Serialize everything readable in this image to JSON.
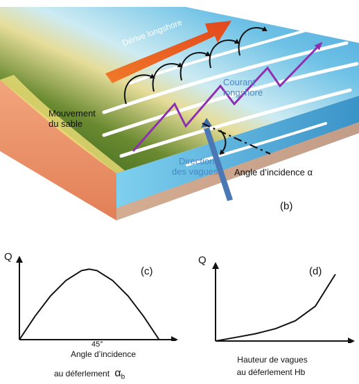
{
  "diagram": {
    "labels": {
      "derive": "Dérive longshore",
      "courant_1": "Courant",
      "courant_2": "longshore",
      "mouvement_1": "Mouvement",
      "mouvement_2": "du sable",
      "direction_1": "Direction",
      "direction_2": "des vagues",
      "angle": "Angle d’incidence α",
      "panel_b": "(b)"
    },
    "colors": {
      "land_green": "#3f6b25",
      "sand": "#f3c39a",
      "cliff": "#ec9068",
      "water_light": "#a8dcef",
      "water_deep": "#3d9bd0",
      "arrow_orange": "#e85c1e",
      "current_purple": "#8e2fb0",
      "wave_arrow": "#4a78b5"
    }
  },
  "chart_c": {
    "panel_label": "(c)",
    "y_axis_label": "Q",
    "tick_label": "45°",
    "x_axis_label_1": "Angle d’incidence",
    "x_axis_label_2": "au déferlement",
    "alpha_symbol": "α",
    "alpha_sub": "b"
  },
  "chart_d": {
    "panel_label": "(d)",
    "y_axis_label": "Q",
    "x_axis_label_1": "Hauteur de vagues",
    "x_axis_label_2": "au déferlement  Hb"
  },
  "chart_data": [
    {
      "type": "line",
      "title": "",
      "ylabel": "Q",
      "xlabel": "Angle d’incidence au déferlement αb",
      "x_ticks": [
        "45°"
      ],
      "x": [
        0,
        10,
        20,
        30,
        40,
        45,
        50,
        60,
        70,
        80,
        90
      ],
      "y": [
        0,
        0.33,
        0.62,
        0.84,
        0.98,
        1.0,
        0.98,
        0.84,
        0.62,
        0.33,
        0
      ],
      "xlim": [
        0,
        100
      ],
      "ylim": [
        0,
        1.2
      ],
      "grid": false
    },
    {
      "type": "line",
      "title": "",
      "ylabel": "Q",
      "xlabel": "Hauteur de vagues au déferlement Hb",
      "x": [
        0,
        1,
        2,
        3,
        4,
        5,
        6
      ],
      "y": [
        0,
        0.05,
        0.1,
        0.17,
        0.28,
        0.48,
        0.92
      ],
      "xlim": [
        0,
        6.8
      ],
      "ylim": [
        0,
        1.05
      ],
      "grid": false
    }
  ]
}
